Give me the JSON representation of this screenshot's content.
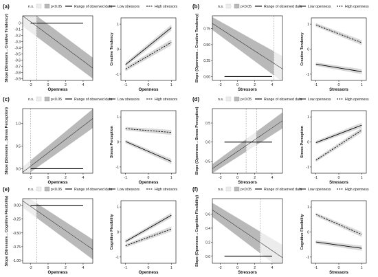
{
  "figure": {
    "legend_texts": {
      "ns": "n.s.",
      "p05": "p<0.05",
      "range": "Range of observed data"
    },
    "colors": {
      "band_ns": "#ececec",
      "band_sig": "#b9b9b9",
      "line": "#333333",
      "rug": "#000000",
      "jn_line": "#888888",
      "panel_border": "#000000"
    }
  },
  "chart_data": [
    {
      "id": "a",
      "panel_label": "(a)",
      "left": {
        "type": "line",
        "legend": [
          "n.s.",
          "p<0.05",
          "Range of observed data"
        ],
        "xlabel": "Openness",
        "ylabel": "Slope (Stressors→Creative Tendency)",
        "xlim": [
          -2.9,
          5.1
        ],
        "ylim": [
          -0.93,
          0.12
        ],
        "xticks": [
          -2,
          0,
          2,
          4
        ],
        "yticks": [
          -0.9,
          -0.8,
          -0.7,
          -0.6,
          -0.5,
          -0.4,
          -0.3,
          -0.2,
          -0.1,
          0.0
        ],
        "ytick_labels": [
          "-0.9",
          "-0.8",
          "-0.7",
          "-0.6",
          "-0.5",
          "-0.4",
          "-0.3",
          "-0.2",
          "-0.1",
          "0"
        ],
        "jn_x": [
          -1.3
        ],
        "sig_region": [
          -1.3,
          5.1
        ],
        "range_observed": [
          -2.0,
          4.0
        ],
        "x": [
          -2.9,
          5.1
        ],
        "y": [
          0.12,
          -0.73
        ],
        "ci_lower": [
          -0.05,
          -0.9
        ],
        "ci_upper": [
          0.29,
          -0.56
        ],
        "ref_y": 0
      },
      "right": {
        "type": "line",
        "legend": [
          "Low stressors",
          "High stressors"
        ],
        "xlabel": "Openness",
        "ylabel": "Creative Tendency",
        "xlim": [
          -1.2,
          1.2
        ],
        "ylim": [
          -1.25,
          1.25
        ],
        "xticks": [
          -1,
          0,
          1
        ],
        "yticks": [
          -1,
          0,
          1
        ],
        "series": [
          {
            "name": "Low stressors",
            "style": "solid",
            "x": [
              -1,
              1
            ],
            "y": [
              -0.62,
              0.86
            ],
            "ci": 0.06
          },
          {
            "name": "High stressors",
            "style": "dashed",
            "x": [
              -1,
              1
            ],
            "y": [
              -0.8,
              0.27
            ],
            "ci": 0.06
          }
        ]
      }
    },
    {
      "id": "b",
      "panel_label": "(b)",
      "left": {
        "type": "line",
        "legend": [
          "n.s.",
          "p<0.05",
          "Range of observed data"
        ],
        "xlabel": "Stressors",
        "ylabel": "Slope (Openness→Creative Tendency)",
        "xlim": [
          -2.9,
          5.2
        ],
        "ylim": [
          -0.06,
          0.95
        ],
        "xticks": [
          -2,
          0,
          2,
          4
        ],
        "yticks": [
          0.0,
          0.25,
          0.5,
          0.75
        ],
        "ytick_labels": [
          "0.00",
          "0.25",
          "0.50",
          "0.75"
        ],
        "jn_x": [
          4.2
        ],
        "sig_region": [
          -2.9,
          4.2
        ],
        "range_observed": [
          -1.5,
          4.0
        ],
        "x": [
          -2.9,
          5.2
        ],
        "y": [
          0.83,
          0.12
        ],
        "ci_lower": [
          0.73,
          -0.08
        ],
        "ci_upper": [
          0.93,
          0.32
        ],
        "ref_y": 0
      },
      "right": {
        "type": "line",
        "legend": [
          "Low openness",
          "High openness"
        ],
        "xlabel": "Stressors",
        "ylabel": "Creative Tendency",
        "xlim": [
          -1.2,
          1.2
        ],
        "ylim": [
          -1.25,
          1.25
        ],
        "xticks": [
          -1,
          0,
          1
        ],
        "yticks": [
          -1,
          0,
          1
        ],
        "series": [
          {
            "name": "Low openness",
            "style": "solid",
            "x": [
              -1,
              1
            ],
            "y": [
              -0.6,
              -0.9
            ],
            "ci": 0.05
          },
          {
            "name": "High openness",
            "style": "dashed",
            "x": [
              -1,
              1
            ],
            "y": [
              0.97,
              0.26
            ],
            "ci": 0.05
          }
        ]
      }
    },
    {
      "id": "c",
      "panel_label": "(c)",
      "left": {
        "type": "line",
        "legend": [
          "n.s.",
          "p<0.05",
          "Range of observed data"
        ],
        "xlabel": "Openness",
        "ylabel": "Slope (Stressors→Stress Perception)",
        "xlim": [
          -2.9,
          5.1
        ],
        "ylim": [
          -0.1,
          1.33
        ],
        "xticks": [
          -2,
          0,
          2,
          4
        ],
        "yticks": [
          0.0,
          0.5,
          1.0
        ],
        "ytick_labels": [
          "0.0",
          "0.5",
          "1.0"
        ],
        "jn_x": [
          -2.0
        ],
        "sig_region": [
          -2.0,
          5.1
        ],
        "range_observed": [
          -2.0,
          4.0
        ],
        "x": [
          -2.9,
          5.1
        ],
        "y": [
          -0.08,
          1.11
        ],
        "ci_lower": [
          -0.2,
          0.9
        ],
        "ci_upper": [
          0.04,
          1.32
        ],
        "ref_y": 0
      },
      "right": {
        "type": "line",
        "legend": [
          "Low stressors",
          "High stressors"
        ],
        "xlabel": "Openness",
        "ylabel": "Stress Perception",
        "xlim": [
          -1.2,
          1.2
        ],
        "ylim": [
          -1.25,
          1.25
        ],
        "xticks": [
          -1,
          0,
          1
        ],
        "yticks": [
          -1,
          0,
          1
        ],
        "series": [
          {
            "name": "Low stressors",
            "style": "solid",
            "x": [
              -1,
              1
            ],
            "y": [
              0.02,
              -0.78
            ],
            "ci": 0.05
          },
          {
            "name": "High stressors",
            "style": "dashed",
            "x": [
              -1,
              1
            ],
            "y": [
              0.53,
              0.38
            ],
            "ci": 0.05
          }
        ]
      }
    },
    {
      "id": "d",
      "panel_label": "(d)",
      "left": {
        "type": "line",
        "legend": [
          "n.s.",
          "p<0.05",
          "Range of observed data"
        ],
        "xlabel": "Stressors",
        "ylabel": "Slope (Openness→Stress Perception)",
        "xlim": [
          -2.9,
          5.2
        ],
        "ylim": [
          -0.82,
          0.88
        ],
        "xticks": [
          -2,
          0,
          2,
          4
        ],
        "yticks": [
          -0.5,
          0.0,
          0.5
        ],
        "ytick_labels": [
          "-0.5",
          "0.0",
          "0.5"
        ],
        "jn_x": [
          1.0,
          2.2
        ],
        "sig_region_multi": [
          [
            -2.9,
            1.0
          ],
          [
            2.2,
            5.2
          ]
        ],
        "range_observed": [
          -1.5,
          4.0
        ],
        "x": [
          -2.9,
          5.2
        ],
        "y": [
          -0.7,
          0.56
        ],
        "ci_lower": [
          -0.82,
          0.36
        ],
        "ci_upper": [
          -0.58,
          0.78
        ],
        "ref_y": 0
      },
      "right": {
        "type": "line",
        "legend": [
          "Low openness",
          "High openness"
        ],
        "xlabel": "Stressors",
        "ylabel": "Stress Perception",
        "xlim": [
          -1.2,
          1.2
        ],
        "ylim": [
          -1.25,
          1.25
        ],
        "xticks": [
          -1,
          0,
          1
        ],
        "yticks": [
          -1,
          0,
          1
        ],
        "series": [
          {
            "name": "Low openness",
            "style": "solid",
            "x": [
              -1,
              1
            ],
            "y": [
              -0.03,
              0.67
            ],
            "ci": 0.05
          },
          {
            "name": "High openness",
            "style": "dashed",
            "x": [
              -1,
              1
            ],
            "y": [
              -0.73,
              0.47
            ],
            "ci": 0.05
          }
        ]
      }
    },
    {
      "id": "e",
      "panel_label": "(e)",
      "left": {
        "type": "line",
        "legend": [
          "n.s.",
          "p<0.05",
          "Range of observed data"
        ],
        "xlabel": "Openness",
        "ylabel": "Slope (Stressors→Cognitive Flexibility)",
        "xlim": [
          -2.9,
          5.1
        ],
        "ylim": [
          -1.05,
          0.12
        ],
        "xticks": [
          -2,
          0,
          2,
          4
        ],
        "yticks": [
          -1.0,
          -0.75,
          -0.5,
          -0.25,
          0.0
        ],
        "ytick_labels": [
          "-1.00",
          "-0.75",
          "-0.50",
          "-0.25",
          "0.00"
        ],
        "jn_x": [
          -1.3
        ],
        "sig_region": [
          -1.3,
          5.1
        ],
        "range_observed": [
          -2.0,
          4.0
        ],
        "x": [
          -2.9,
          5.1
        ],
        "y": [
          0.08,
          -0.8
        ],
        "ci_lower": [
          -0.04,
          -0.98
        ],
        "ci_upper": [
          0.2,
          -0.62
        ],
        "ref_y": 0
      },
      "right": {
        "type": "line",
        "legend": [
          "Low stressors",
          "High stressors"
        ],
        "xlabel": "Openness",
        "ylabel": "Cognitive Flexibility",
        "xlim": [
          -1.2,
          1.2
        ],
        "ylim": [
          -1.25,
          1.25
        ],
        "xticks": [
          -1,
          0,
          1
        ],
        "yticks": [
          -1,
          0,
          1
        ],
        "series": [
          {
            "name": "Low stressors",
            "style": "solid",
            "x": [
              -1,
              1
            ],
            "y": [
              -0.38,
              0.67
            ],
            "ci": 0.05
          },
          {
            "name": "High stressors",
            "style": "dashed",
            "x": [
              -1,
              1
            ],
            "y": [
              -0.55,
              0.12
            ],
            "ci": 0.05
          }
        ]
      }
    },
    {
      "id": "f",
      "panel_label": "(f)",
      "left": {
        "type": "line",
        "legend": [
          "n.s.",
          "p<0.05",
          "Range of observed data"
        ],
        "xlabel": "Stressors",
        "ylabel": "Slope (Openness→Cognitive Flexibility)",
        "xlim": [
          -2.9,
          5.2
        ],
        "ylim": [
          -0.1,
          0.82
        ],
        "xticks": [
          -2,
          0,
          2,
          4
        ],
        "yticks": [
          0.0,
          0.2,
          0.4,
          0.6
        ],
        "ytick_labels": [
          "0.0",
          "0.2",
          "0.4",
          "0.6"
        ],
        "jn_x": [
          2.6
        ],
        "sig_region": [
          -2.9,
          2.6
        ],
        "range_observed": [
          -1.5,
          4.0
        ],
        "x": [
          -2.9,
          5.2
        ],
        "y": [
          0.66,
          -0.02
        ],
        "ci_lower": [
          0.56,
          -0.2
        ],
        "ci_upper": [
          0.76,
          0.16
        ],
        "ref_y": 0
      },
      "right": {
        "type": "line",
        "legend": [
          "Low openness",
          "High openness"
        ],
        "xlabel": "Stressors",
        "ylabel": "Cognitive Flexibility",
        "xlim": [
          -1.2,
          1.2
        ],
        "ylim": [
          -1.25,
          1.25
        ],
        "xticks": [
          -1,
          0,
          1
        ],
        "yticks": [
          -1,
          0,
          1
        ],
        "series": [
          {
            "name": "Low openness",
            "style": "solid",
            "x": [
              -1,
              1
            ],
            "y": [
              -0.4,
              -0.65
            ],
            "ci": 0.05
          },
          {
            "name": "High openness",
            "style": "dashed",
            "x": [
              -1,
              1
            ],
            "y": [
              0.7,
              -0.1
            ],
            "ci": 0.05
          }
        ]
      }
    }
  ]
}
